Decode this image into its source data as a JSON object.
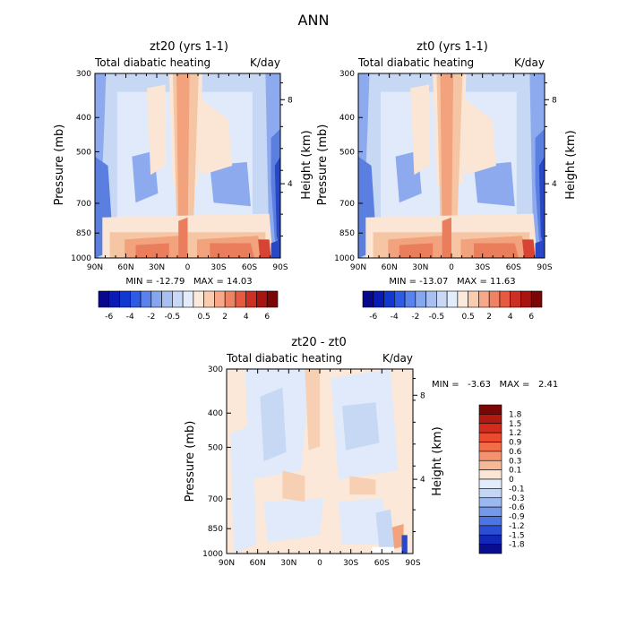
{
  "figure_title": "ANN",
  "chart_data": [
    {
      "type": "heatmap",
      "id": "p1",
      "title": "zt20 (yrs 1-1)",
      "subtitle_left": "Total diabatic heating",
      "subtitle_right": "K/day",
      "ylabel": "Pressure (mb)",
      "ylabel_right": "Height (km)",
      "x_ticks": [
        "90N",
        "60N",
        "30N",
        "0",
        "30S",
        "60S",
        "90S"
      ],
      "y_ticks": [
        "300",
        "400",
        "500",
        "700",
        "850",
        "1000"
      ],
      "y_ticks_right": [
        "8",
        "4"
      ],
      "stats_text": "MIN = -12.79   MAX = 14.03",
      "min": -12.79,
      "max": 14.03
    },
    {
      "type": "heatmap",
      "id": "p2",
      "title": "zt0 (yrs 1-1)",
      "subtitle_left": "Total diabatic heating",
      "subtitle_right": "K/day",
      "ylabel": "Pressure (mb)",
      "ylabel_right": "Height (km)",
      "x_ticks": [
        "90N",
        "60N",
        "30N",
        "0",
        "30S",
        "60S",
        "90S"
      ],
      "y_ticks": [
        "300",
        "400",
        "500",
        "700",
        "850",
        "1000"
      ],
      "y_ticks_right": [
        "8",
        "4"
      ],
      "stats_text": "MIN = -13.07   MAX = 11.63",
      "min": -13.07,
      "max": 11.63
    },
    {
      "type": "heatmap",
      "id": "p3",
      "title": "zt20 - zt0",
      "subtitle_left": "Total diabatic heating",
      "subtitle_right": "K/day",
      "ylabel": "Pressure (mb)",
      "ylabel_right": "Height (km)",
      "x_ticks": [
        "90N",
        "60N",
        "30N",
        "0",
        "30S",
        "60S",
        "90S"
      ],
      "y_ticks": [
        "300",
        "400",
        "500",
        "700",
        "850",
        "1000"
      ],
      "y_ticks_right": [
        "8",
        "4"
      ],
      "stats_text": "MIN =   -3.63   MAX =   2.41",
      "min": -3.63,
      "max": 2.41
    }
  ],
  "colorbar_top": {
    "labels": [
      "-6",
      "-4",
      "-2",
      "-0.5",
      "0.5",
      "2",
      "4",
      "6"
    ],
    "colors": [
      "#08088c",
      "#0a1ab4",
      "#1238d2",
      "#2e5ae6",
      "#5a82ec",
      "#86a6ee",
      "#a8c0f0",
      "#c8d8f6",
      "#e2ecfb",
      "#fbe9dc",
      "#f9ccb0",
      "#f6a888",
      "#f08264",
      "#e65a42",
      "#cc3024",
      "#a81410",
      "#7a0606"
    ]
  },
  "colorbar_diff": {
    "labels": [
      "1.8",
      "1.5",
      "1.2",
      "0.9",
      "0.6",
      "0.3",
      "0.1",
      "0",
      "-0.1",
      "-0.3",
      "-0.6",
      "-0.9",
      "-1.2",
      "-1.5",
      "-1.8"
    ],
    "colors": [
      "#7a0606",
      "#b01a12",
      "#d42c1c",
      "#ec4a2e",
      "#f26c48",
      "#f49270",
      "#f7b898",
      "#fbe5d4",
      "#e2ecfb",
      "#c4d6f4",
      "#9cb8f0",
      "#7498ea",
      "#4c74e2",
      "#2a4ed6",
      "#1228b8",
      "#080e8e"
    ]
  },
  "colors": {
    "axis": "#000000",
    "panel_bg_diff": "#fbe8d8"
  }
}
